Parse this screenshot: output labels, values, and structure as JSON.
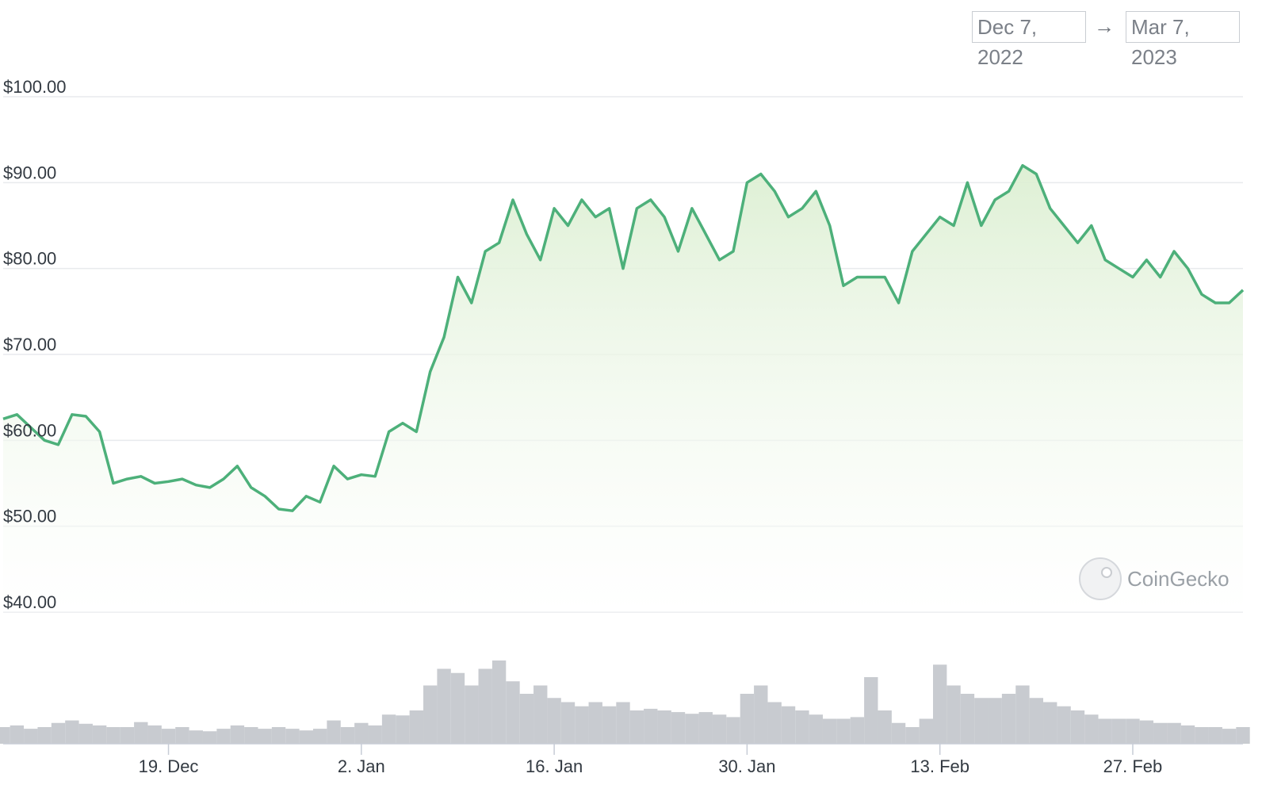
{
  "date_range": {
    "from": "Dec 7, 2022",
    "to": "Mar 7, 2023",
    "arrow": "→"
  },
  "watermark": "CoinGecko",
  "colors": {
    "line": "#4db07a",
    "fill": "#e3f2dc",
    "grid": "#e8eaed",
    "volume": "#c8cbd0"
  },
  "chart_data": {
    "type": "area",
    "title": "",
    "xlabel": "",
    "ylabel": "",
    "ylim": [
      40,
      100
    ],
    "y_ticks": [
      "$40.00",
      "$50.00",
      "$60.00",
      "$70.00",
      "$80.00",
      "$90.00",
      "$100.00"
    ],
    "y_tick_values": [
      40,
      50,
      60,
      70,
      80,
      90,
      100
    ],
    "x_ticks": [
      "19. Dec",
      "2. Jan",
      "16. Jan",
      "30. Jan",
      "13. Feb",
      "27. Feb"
    ],
    "x_tick_dates": [
      "2022-12-19",
      "2023-01-02",
      "2023-01-16",
      "2023-01-30",
      "2023-02-13",
      "2023-02-27"
    ],
    "x_range": [
      "2022-12-07",
      "2023-03-07"
    ],
    "grid": true,
    "legend": "none",
    "series": [
      {
        "x": [
          "2022-12-07",
          "2022-12-08",
          "2022-12-09",
          "2022-12-10",
          "2022-12-11",
          "2022-12-12",
          "2022-12-13",
          "2022-12-14",
          "2022-12-15",
          "2022-12-16",
          "2022-12-17",
          "2022-12-18",
          "2022-12-19",
          "2022-12-20",
          "2022-12-21",
          "2022-12-22",
          "2022-12-23",
          "2022-12-24",
          "2022-12-25",
          "2022-12-26",
          "2022-12-27",
          "2022-12-28",
          "2022-12-29",
          "2022-12-30",
          "2022-12-31",
          "2023-01-01",
          "2023-01-02",
          "2023-01-03",
          "2023-01-04",
          "2023-01-05",
          "2023-01-06",
          "2023-01-07",
          "2023-01-08",
          "2023-01-09",
          "2023-01-10",
          "2023-01-11",
          "2023-01-12",
          "2023-01-13",
          "2023-01-14",
          "2023-01-15",
          "2023-01-16",
          "2023-01-17",
          "2023-01-18",
          "2023-01-19",
          "2023-01-20",
          "2023-01-21",
          "2023-01-22",
          "2023-01-23",
          "2023-01-24",
          "2023-01-25",
          "2023-01-26",
          "2023-01-27",
          "2023-01-28",
          "2023-01-29",
          "2023-01-30",
          "2023-01-31",
          "2023-02-01",
          "2023-02-02",
          "2023-02-03",
          "2023-02-04",
          "2023-02-05",
          "2023-02-06",
          "2023-02-07",
          "2023-02-08",
          "2023-02-09",
          "2023-02-10",
          "2023-02-11",
          "2023-02-12",
          "2023-02-13",
          "2023-02-14",
          "2023-02-15",
          "2023-02-16",
          "2023-02-17",
          "2023-02-18",
          "2023-02-19",
          "2023-02-20",
          "2023-02-21",
          "2023-02-22",
          "2023-02-23",
          "2023-02-24",
          "2023-02-25",
          "2023-02-26",
          "2023-02-27",
          "2023-02-28",
          "2023-03-01",
          "2023-03-02",
          "2023-03-03",
          "2023-03-04",
          "2023-03-05",
          "2023-03-06",
          "2023-03-07"
        ],
        "values": [
          62.5,
          63,
          61.5,
          60,
          59.5,
          63,
          62.8,
          61,
          55,
          55.5,
          55.8,
          55,
          55.2,
          55.5,
          54.8,
          54.5,
          55.5,
          57,
          54.5,
          53.5,
          52,
          51.8,
          53.5,
          52.8,
          57,
          55.5,
          56,
          55.8,
          61,
          62,
          61,
          68,
          72,
          79,
          76,
          82,
          83,
          88,
          84,
          81,
          87,
          85,
          88,
          86,
          87,
          80,
          87,
          88,
          86,
          82,
          87,
          84,
          81,
          82,
          90,
          91,
          89,
          86,
          87,
          89,
          85,
          78,
          79,
          79,
          79,
          76,
          82,
          84,
          86,
          85,
          90,
          85,
          88,
          89,
          92,
          91,
          87,
          85,
          83,
          85,
          81,
          80,
          79,
          81,
          79,
          82,
          80,
          77,
          76,
          76,
          77.5
        ]
      }
    ],
    "volume": [
      0.2,
      0.22,
      0.18,
      0.2,
      0.25,
      0.28,
      0.24,
      0.22,
      0.2,
      0.2,
      0.26,
      0.22,
      0.18,
      0.2,
      0.16,
      0.15,
      0.18,
      0.22,
      0.2,
      0.18,
      0.2,
      0.18,
      0.16,
      0.18,
      0.28,
      0.2,
      0.25,
      0.22,
      0.35,
      0.34,
      0.4,
      0.7,
      0.9,
      0.85,
      0.7,
      0.9,
      1.0,
      0.75,
      0.6,
      0.7,
      0.55,
      0.5,
      0.45,
      0.5,
      0.45,
      0.5,
      0.4,
      0.42,
      0.4,
      0.38,
      0.36,
      0.38,
      0.35,
      0.32,
      0.6,
      0.7,
      0.5,
      0.45,
      0.4,
      0.35,
      0.3,
      0.3,
      0.32,
      0.8,
      0.4,
      0.25,
      0.2,
      0.3,
      0.95,
      0.7,
      0.6,
      0.55,
      0.55,
      0.6,
      0.7,
      0.55,
      0.5,
      0.45,
      0.4,
      0.35,
      0.3,
      0.3,
      0.3,
      0.28,
      0.25,
      0.25,
      0.22,
      0.2,
      0.2,
      0.18,
      0.2
    ]
  }
}
